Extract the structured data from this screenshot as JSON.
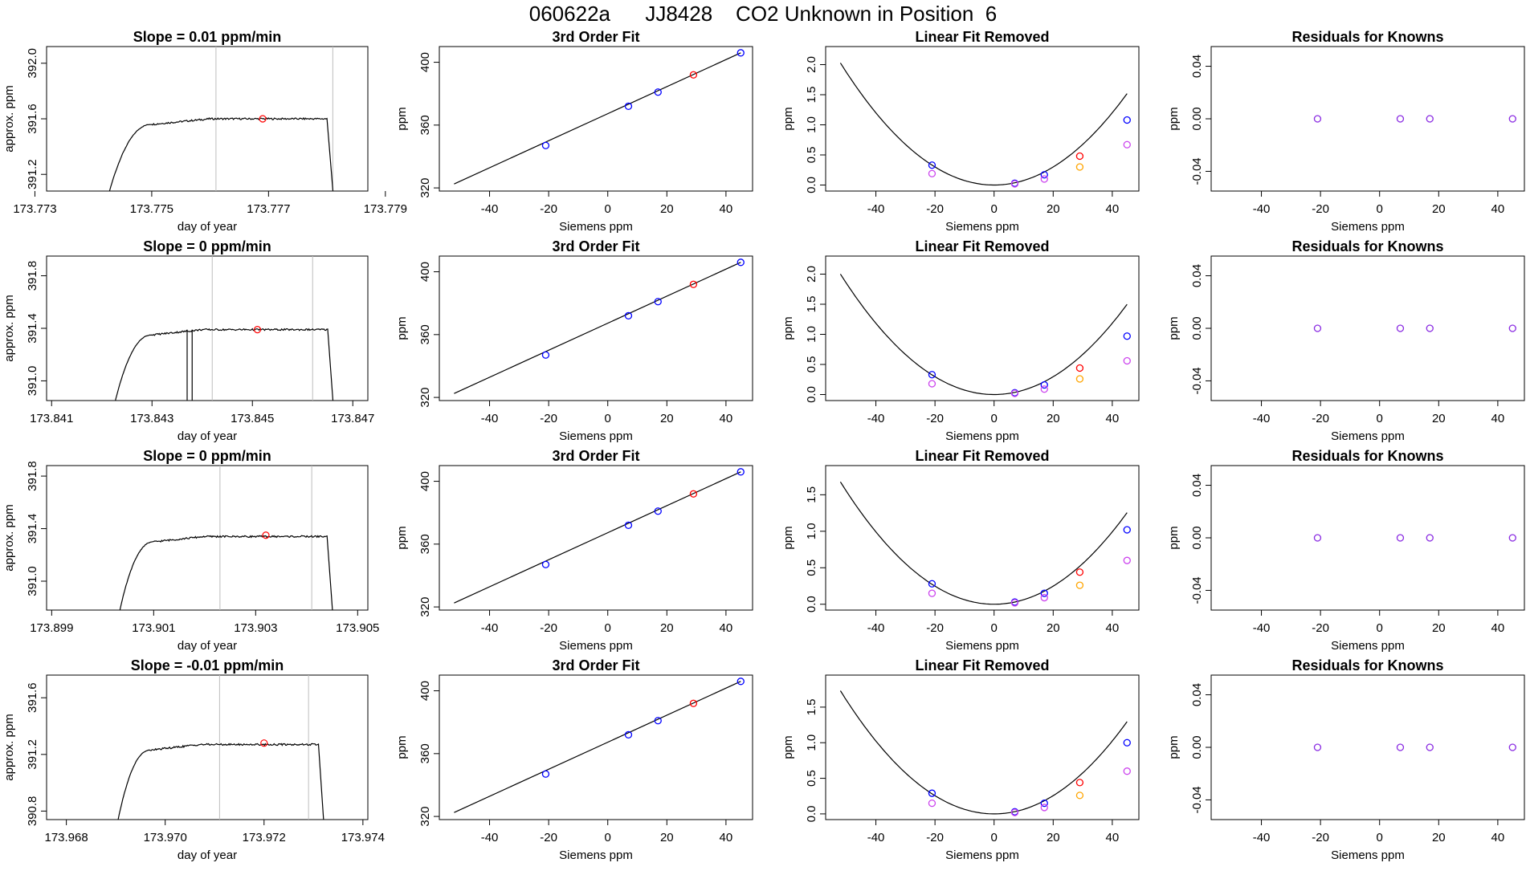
{
  "page": {
    "title": "060622a      JJ8428    CO2 Unknown in Position  6"
  },
  "chart_data": [
    {
      "type": "line",
      "panel": "timeseries",
      "row": 0,
      "title": "Slope =  0.01  ppm/min",
      "xlabel": "day of year",
      "ylabel": "approx. ppm",
      "xlim": [
        173.7732,
        173.7787
      ],
      "ylim": [
        391.08,
        392.12
      ],
      "xticks": [
        173.773,
        173.775,
        173.777,
        173.779
      ],
      "xtick_labels": [
        "173.773",
        "173.775",
        "173.777",
        "173.779"
      ],
      "yticks": [
        391.2,
        391.6,
        392.0
      ],
      "ytick_labels": [
        "391.2",
        "391.6",
        "392.0"
      ],
      "vlines": [
        173.7761,
        173.7781
      ],
      "marker": {
        "x": 173.7769,
        "y": 391.6
      },
      "rise": {
        "x0": 173.774,
        "x1": 173.775,
        "x2": 173.776
      },
      "plateau": 391.6,
      "drop": {
        "x0": 173.778,
        "x1": 173.7782
      }
    },
    {
      "type": "line",
      "panel": "poly",
      "row": 0,
      "title": "3rd Order Fit",
      "xlabel": "Siemens ppm",
      "ylabel": "ppm",
      "xlim": [
        -57,
        49
      ],
      "ylim": [
        318,
        410
      ],
      "xticks": [
        -40,
        -20,
        0,
        20,
        40
      ],
      "xtick_labels": [
        "-40",
        "-20",
        "0",
        "20",
        "40"
      ],
      "yticks": [
        320,
        360,
        400
      ],
      "ytick_labels": [
        "320",
        "360",
        "400"
      ],
      "line": {
        "x": [
          -52,
          45
        ],
        "y": [
          322.5,
          406
        ]
      },
      "points": [
        {
          "x": -21,
          "y": 347,
          "color": "#0000ff"
        },
        {
          "x": 7,
          "y": 372,
          "color": "#0000ff"
        },
        {
          "x": 17,
          "y": 381,
          "color": "#0000ff"
        },
        {
          "x": 29,
          "y": 392,
          "color": "#ff0000"
        },
        {
          "x": 45,
          "y": 406,
          "color": "#0000ff"
        }
      ]
    },
    {
      "type": "scatter",
      "panel": "linear_removed",
      "row": 0,
      "title": "Linear Fit Removed",
      "xlabel": "Siemens ppm",
      "ylabel": "ppm",
      "xlim": [
        -57,
        49
      ],
      "ylim": [
        -0.1,
        2.3
      ],
      "xticks": [
        -40,
        -20,
        0,
        20,
        40
      ],
      "xtick_labels": [
        "-40",
        "-20",
        "0",
        "20",
        "40"
      ],
      "yticks": [
        0,
        0.5,
        1.0,
        1.5,
        2.0
      ],
      "ytick_labels": [
        "0.0",
        "0.5",
        "1.0",
        "1.5",
        "2.0"
      ],
      "curve_coeff": 0.00075,
      "curve_range": [
        -52,
        45
      ],
      "points": [
        {
          "x": -21,
          "y": 0.33,
          "color": "#0000ff"
        },
        {
          "x": -21,
          "y": 0.19,
          "color": "#cc44ee"
        },
        {
          "x": 7,
          "y": 0.03,
          "color": "#0000ff"
        },
        {
          "x": 7,
          "y": 0.02,
          "color": "#cc44ee"
        },
        {
          "x": 17,
          "y": 0.17,
          "color": "#0000ff"
        },
        {
          "x": 17,
          "y": 0.1,
          "color": "#cc44ee"
        },
        {
          "x": 29,
          "y": 0.48,
          "color": "#ff0000"
        },
        {
          "x": 29,
          "y": 0.3,
          "color": "#ffa500"
        },
        {
          "x": 45,
          "y": 1.08,
          "color": "#0000ff"
        },
        {
          "x": 45,
          "y": 0.67,
          "color": "#cc44ee"
        }
      ]
    },
    {
      "type": "scatter",
      "panel": "residuals",
      "row": 0,
      "title": "Residuals for Knowns",
      "xlabel": "Siemens ppm",
      "ylabel": "ppm",
      "xlim": [
        -57,
        49
      ],
      "ylim": [
        -0.055,
        0.055
      ],
      "xticks": [
        -40,
        -20,
        0,
        20,
        40
      ],
      "xtick_labels": [
        "-40",
        "-20",
        "0",
        "20",
        "40"
      ],
      "yticks": [
        -0.04,
        0,
        0.04
      ],
      "ytick_labels": [
        "-0.04",
        "0.00",
        "0.04"
      ],
      "points": [
        {
          "x": -21,
          "y": 0,
          "color": "#8a2be2"
        },
        {
          "x": 7,
          "y": 0,
          "color": "#8a2be2"
        },
        {
          "x": 17,
          "y": 0,
          "color": "#8a2be2"
        },
        {
          "x": 45,
          "y": 0,
          "color": "#8a2be2"
        }
      ]
    },
    {
      "type": "line",
      "panel": "timeseries",
      "row": 1,
      "title": "Slope =  0  ppm/min",
      "xlabel": "day of year",
      "ylabel": "approx. ppm",
      "xlim": [
        173.8409,
        173.8473
      ],
      "ylim": [
        390.85,
        391.95
      ],
      "xticks": [
        173.841,
        173.843,
        173.845,
        173.847
      ],
      "xtick_labels": [
        "173.841",
        "173.843",
        "173.845",
        "173.847"
      ],
      "yticks": [
        391.0,
        391.4,
        391.8
      ],
      "ytick_labels": [
        "391.0",
        "391.4",
        "391.8"
      ],
      "vlines": [
        173.8442,
        173.8462
      ],
      "marker": {
        "x": 173.8451,
        "y": 391.39
      },
      "rise": {
        "x0": 173.842,
        "x1": 173.843,
        "x2": 173.844
      },
      "plateau": 391.39,
      "drop": {
        "x0": 173.8465,
        "x1": 173.8467
      },
      "dropout": {
        "x0": 173.8437,
        "x1": 173.8438
      }
    },
    {
      "type": "line",
      "panel": "poly",
      "row": 1,
      "title": "3rd Order Fit",
      "xlabel": "Siemens ppm",
      "ylabel": "ppm",
      "xlim": [
        -57,
        49
      ],
      "ylim": [
        318,
        410
      ],
      "xticks": [
        -40,
        -20,
        0,
        20,
        40
      ],
      "xtick_labels": [
        "-40",
        "-20",
        "0",
        "20",
        "40"
      ],
      "yticks": [
        320,
        360,
        400
      ],
      "ytick_labels": [
        "320",
        "360",
        "400"
      ],
      "line": {
        "x": [
          -52,
          45
        ],
        "y": [
          322.5,
          406
        ]
      },
      "points": [
        {
          "x": -21,
          "y": 347,
          "color": "#0000ff"
        },
        {
          "x": 7,
          "y": 372,
          "color": "#0000ff"
        },
        {
          "x": 17,
          "y": 381,
          "color": "#0000ff"
        },
        {
          "x": 29,
          "y": 392,
          "color": "#ff0000"
        },
        {
          "x": 45,
          "y": 406,
          "color": "#0000ff"
        }
      ]
    },
    {
      "type": "scatter",
      "panel": "linear_removed",
      "row": 1,
      "title": "Linear Fit Removed",
      "xlabel": "Siemens ppm",
      "ylabel": "ppm",
      "xlim": [
        -57,
        49
      ],
      "ylim": [
        -0.1,
        2.3
      ],
      "xticks": [
        -40,
        -20,
        0,
        20,
        40
      ],
      "xtick_labels": [
        "-40",
        "-20",
        "0",
        "20",
        "40"
      ],
      "yticks": [
        0,
        0.5,
        1.0,
        1.5,
        2.0
      ],
      "ytick_labels": [
        "0.0",
        "0.5",
        "1.0",
        "1.5",
        "2.0"
      ],
      "curve_coeff": 0.00074,
      "curve_range": [
        -52,
        45
      ],
      "points": [
        {
          "x": -21,
          "y": 0.33,
          "color": "#0000ff"
        },
        {
          "x": -21,
          "y": 0.18,
          "color": "#cc44ee"
        },
        {
          "x": 7,
          "y": 0.03,
          "color": "#0000ff"
        },
        {
          "x": 7,
          "y": 0.02,
          "color": "#cc44ee"
        },
        {
          "x": 17,
          "y": 0.16,
          "color": "#0000ff"
        },
        {
          "x": 17,
          "y": 0.09,
          "color": "#cc44ee"
        },
        {
          "x": 29,
          "y": 0.44,
          "color": "#ff0000"
        },
        {
          "x": 29,
          "y": 0.26,
          "color": "#ffa500"
        },
        {
          "x": 45,
          "y": 0.97,
          "color": "#0000ff"
        },
        {
          "x": 45,
          "y": 0.56,
          "color": "#cc44ee"
        }
      ]
    },
    {
      "type": "scatter",
      "panel": "residuals",
      "row": 1,
      "title": "Residuals for Knowns",
      "xlabel": "Siemens ppm",
      "ylabel": "ppm",
      "xlim": [
        -57,
        49
      ],
      "ylim": [
        -0.055,
        0.055
      ],
      "xticks": [
        -40,
        -20,
        0,
        20,
        40
      ],
      "xtick_labels": [
        "-40",
        "-20",
        "0",
        "20",
        "40"
      ],
      "yticks": [
        -0.04,
        0,
        0.04
      ],
      "ytick_labels": [
        "-0.04",
        "0.00",
        "0.04"
      ],
      "points": [
        {
          "x": -21,
          "y": 0,
          "color": "#8a2be2"
        },
        {
          "x": 7,
          "y": 0,
          "color": "#8a2be2"
        },
        {
          "x": 17,
          "y": 0,
          "color": "#8a2be2"
        },
        {
          "x": 45,
          "y": 0,
          "color": "#8a2be2"
        }
      ]
    },
    {
      "type": "line",
      "panel": "timeseries",
      "row": 2,
      "title": "Slope =  0  ppm/min",
      "xlabel": "day of year",
      "ylabel": "approx. ppm",
      "xlim": [
        173.8989,
        173.9052
      ],
      "ylim": [
        390.78,
        391.88
      ],
      "xticks": [
        173.899,
        173.901,
        173.903,
        173.905
      ],
      "xtick_labels": [
        "173.899",
        "173.901",
        "173.903",
        "173.905"
      ],
      "yticks": [
        391.0,
        391.4,
        391.8
      ],
      "ytick_labels": [
        "391.0",
        "391.4",
        "391.8"
      ],
      "vlines": [
        173.9023,
        173.9041
      ],
      "marker": {
        "x": 173.9032,
        "y": 391.35
      },
      "rise": {
        "x0": 173.9001,
        "x1": 173.901,
        "x2": 173.902
      },
      "plateau": 391.34,
      "drop": {
        "x0": 173.9044,
        "x1": 173.9046
      }
    },
    {
      "type": "line",
      "panel": "poly",
      "row": 2,
      "title": "3rd Order Fit",
      "xlabel": "Siemens ppm",
      "ylabel": "ppm",
      "xlim": [
        -57,
        49
      ],
      "ylim": [
        318,
        410
      ],
      "xticks": [
        -40,
        -20,
        0,
        20,
        40
      ],
      "xtick_labels": [
        "-40",
        "-20",
        "0",
        "20",
        "40"
      ],
      "yticks": [
        320,
        360,
        400
      ],
      "ytick_labels": [
        "320",
        "360",
        "400"
      ],
      "line": {
        "x": [
          -52,
          45
        ],
        "y": [
          322.5,
          406
        ]
      },
      "points": [
        {
          "x": -21,
          "y": 347,
          "color": "#0000ff"
        },
        {
          "x": 7,
          "y": 372,
          "color": "#0000ff"
        },
        {
          "x": 17,
          "y": 381,
          "color": "#0000ff"
        },
        {
          "x": 29,
          "y": 392,
          "color": "#ff0000"
        },
        {
          "x": 45,
          "y": 406,
          "color": "#0000ff"
        }
      ]
    },
    {
      "type": "scatter",
      "panel": "linear_removed",
      "row": 2,
      "title": "Linear Fit Removed",
      "xlabel": "Siemens ppm",
      "ylabel": "ppm",
      "xlim": [
        -57,
        49
      ],
      "ylim": [
        -0.08,
        1.9
      ],
      "xticks": [
        -40,
        -20,
        0,
        20,
        40
      ],
      "xtick_labels": [
        "-40",
        "-20",
        "0",
        "20",
        "40"
      ],
      "yticks": [
        0,
        0.5,
        1.0,
        1.5
      ],
      "ytick_labels": [
        "0.0",
        "0.5",
        "1.0",
        "1.5"
      ],
      "curve_coeff": 0.00062,
      "curve_range": [
        -52,
        45
      ],
      "points": [
        {
          "x": -21,
          "y": 0.28,
          "color": "#0000ff"
        },
        {
          "x": -21,
          "y": 0.15,
          "color": "#cc44ee"
        },
        {
          "x": 7,
          "y": 0.03,
          "color": "#0000ff"
        },
        {
          "x": 7,
          "y": 0.02,
          "color": "#cc44ee"
        },
        {
          "x": 17,
          "y": 0.15,
          "color": "#0000ff"
        },
        {
          "x": 17,
          "y": 0.09,
          "color": "#cc44ee"
        },
        {
          "x": 29,
          "y": 0.44,
          "color": "#ff0000"
        },
        {
          "x": 29,
          "y": 0.26,
          "color": "#ffa500"
        },
        {
          "x": 45,
          "y": 1.02,
          "color": "#0000ff"
        },
        {
          "x": 45,
          "y": 0.6,
          "color": "#cc44ee"
        }
      ]
    },
    {
      "type": "scatter",
      "panel": "residuals",
      "row": 2,
      "title": "Residuals for Knowns",
      "xlabel": "Siemens ppm",
      "ylabel": "ppm",
      "xlim": [
        -57,
        49
      ],
      "ylim": [
        -0.055,
        0.055
      ],
      "xticks": [
        -40,
        -20,
        0,
        20,
        40
      ],
      "xtick_labels": [
        "-40",
        "-20",
        "0",
        "20",
        "40"
      ],
      "yticks": [
        -0.04,
        0,
        0.04
      ],
      "ytick_labels": [
        "-0.04",
        "0.00",
        "0.04"
      ],
      "points": [
        {
          "x": -21,
          "y": 0,
          "color": "#8a2be2"
        },
        {
          "x": 7,
          "y": 0,
          "color": "#8a2be2"
        },
        {
          "x": 17,
          "y": 0,
          "color": "#8a2be2"
        },
        {
          "x": 45,
          "y": 0,
          "color": "#8a2be2"
        }
      ]
    },
    {
      "type": "line",
      "panel": "timeseries",
      "row": 3,
      "title": "Slope =  -0.01  ppm/min",
      "xlabel": "day of year",
      "ylabel": "approx. ppm",
      "xlim": [
        173.9676,
        173.9741
      ],
      "ylim": [
        390.74,
        391.76
      ],
      "xticks": [
        173.968,
        173.97,
        173.972,
        173.974
      ],
      "xtick_labels": [
        "173.968",
        "173.970",
        "173.972",
        "173.974"
      ],
      "yticks": [
        390.8,
        391.2,
        391.6
      ],
      "ytick_labels": [
        "390.8",
        "391.2",
        "391.6"
      ],
      "vlines": [
        173.9711,
        173.9729
      ],
      "marker": {
        "x": 173.972,
        "y": 391.28
      },
      "rise": {
        "x0": 173.9688,
        "x1": 173.9697,
        "x2": 173.9707
      },
      "plateau": 391.27,
      "drop": {
        "x0": 173.9731,
        "x1": 173.9733
      }
    },
    {
      "type": "line",
      "panel": "poly",
      "row": 3,
      "title": "3rd Order Fit",
      "xlabel": "Siemens ppm",
      "ylabel": "ppm",
      "xlim": [
        -57,
        49
      ],
      "ylim": [
        318,
        410
      ],
      "xticks": [
        -40,
        -20,
        0,
        20,
        40
      ],
      "xtick_labels": [
        "-40",
        "-20",
        "0",
        "20",
        "40"
      ],
      "yticks": [
        320,
        360,
        400
      ],
      "ytick_labels": [
        "320",
        "360",
        "400"
      ],
      "line": {
        "x": [
          -52,
          45
        ],
        "y": [
          322.5,
          406
        ]
      },
      "points": [
        {
          "x": -21,
          "y": 347,
          "color": "#0000ff"
        },
        {
          "x": 7,
          "y": 372,
          "color": "#0000ff"
        },
        {
          "x": 17,
          "y": 381,
          "color": "#0000ff"
        },
        {
          "x": 29,
          "y": 392,
          "color": "#ff0000"
        },
        {
          "x": 45,
          "y": 406,
          "color": "#0000ff"
        }
      ]
    },
    {
      "type": "scatter",
      "panel": "linear_removed",
      "row": 3,
      "title": "Linear Fit Removed",
      "xlabel": "Siemens ppm",
      "ylabel": "ppm",
      "xlim": [
        -57,
        49
      ],
      "ylim": [
        -0.08,
        1.95
      ],
      "xticks": [
        -40,
        -20,
        0,
        20,
        40
      ],
      "xtick_labels": [
        "-40",
        "-20",
        "0",
        "20",
        "40"
      ],
      "yticks": [
        0,
        0.5,
        1.0,
        1.5
      ],
      "ytick_labels": [
        "0.0",
        "0.5",
        "1.0",
        "1.5"
      ],
      "curve_coeff": 0.00064,
      "curve_range": [
        -52,
        45
      ],
      "points": [
        {
          "x": -21,
          "y": 0.29,
          "color": "#0000ff"
        },
        {
          "x": -21,
          "y": 0.15,
          "color": "#cc44ee"
        },
        {
          "x": 7,
          "y": 0.03,
          "color": "#0000ff"
        },
        {
          "x": 7,
          "y": 0.02,
          "color": "#cc44ee"
        },
        {
          "x": 17,
          "y": 0.15,
          "color": "#0000ff"
        },
        {
          "x": 17,
          "y": 0.09,
          "color": "#cc44ee"
        },
        {
          "x": 29,
          "y": 0.44,
          "color": "#ff0000"
        },
        {
          "x": 29,
          "y": 0.26,
          "color": "#ffa500"
        },
        {
          "x": 45,
          "y": 1.0,
          "color": "#0000ff"
        },
        {
          "x": 45,
          "y": 0.6,
          "color": "#cc44ee"
        }
      ]
    },
    {
      "type": "scatter",
      "panel": "residuals",
      "row": 3,
      "title": "Residuals for Knowns",
      "xlabel": "Siemens ppm",
      "ylabel": "ppm",
      "xlim": [
        -57,
        49
      ],
      "ylim": [
        -0.055,
        0.055
      ],
      "xticks": [
        -40,
        -20,
        0,
        20,
        40
      ],
      "xtick_labels": [
        "-40",
        "-20",
        "0",
        "20",
        "40"
      ],
      "yticks": [
        -0.04,
        0,
        0.04
      ],
      "ytick_labels": [
        "-0.04",
        "0.00",
        "0.04"
      ],
      "points": [
        {
          "x": -21,
          "y": 0,
          "color": "#8a2be2"
        },
        {
          "x": 7,
          "y": 0,
          "color": "#8a2be2"
        },
        {
          "x": 17,
          "y": 0,
          "color": "#8a2be2"
        },
        {
          "x": 45,
          "y": 0,
          "color": "#8a2be2"
        }
      ]
    }
  ]
}
